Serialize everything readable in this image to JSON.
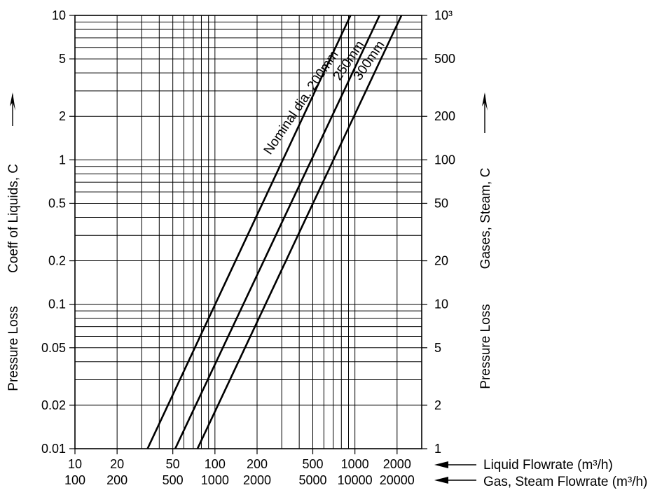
{
  "chart_data": {
    "type": "line",
    "scale": "log-log",
    "x_axis_bottom_1": {
      "ticks": [
        "10",
        "20",
        "50",
        "100",
        "200",
        "500",
        "1000",
        "2000"
      ],
      "values": [
        10,
        20,
        50,
        100,
        200,
        500,
        1000,
        2000
      ],
      "range": [
        10,
        3000
      ],
      "label": "Liquid Flowrate",
      "unit": "(m³/h)"
    },
    "x_axis_bottom_2": {
      "ticks": [
        "100",
        "200",
        "500",
        "1000",
        "2000",
        "5000",
        "10000",
        "20000"
      ],
      "label": "Gas, Steam Flowrate",
      "unit": "(m³/h)"
    },
    "y_axis_left": {
      "ticks": [
        "10",
        "5",
        "2",
        "1",
        "0.5",
        "0.2",
        "0.1",
        "0.05",
        "0.02",
        "0.01"
      ],
      "values": [
        10,
        5,
        2,
        1,
        0.5,
        0.2,
        0.1,
        0.05,
        0.02,
        0.01
      ],
      "range": [
        0.01,
        10
      ],
      "label_part1": "Pressure Loss",
      "label_part2": "Coeff of Liquids, C"
    },
    "y_axis_right": {
      "ticks": [
        "10³",
        "500",
        "200",
        "100",
        "50",
        "20",
        "10",
        "5",
        "2",
        "1"
      ],
      "label_part1": "Pressure Loss",
      "label_part2": "Gases, Steam, C"
    },
    "grid": true,
    "series": [
      {
        "name": "Nominal dia. 200mm",
        "points": [
          [
            33,
            0.01
          ],
          [
            930,
            10
          ]
        ]
      },
      {
        "name": "250mm",
        "points": [
          [
            52,
            0.01
          ],
          [
            1500,
            10
          ]
        ]
      },
      {
        "name": "300mm",
        "points": [
          [
            75,
            0.01
          ],
          [
            2150,
            10
          ]
        ]
      }
    ]
  },
  "icons": {
    "left_axis_arrow": "arrow-up-icon",
    "right_axis_arrow": "arrow-up-icon",
    "liquid_arrow": "arrow-left-icon",
    "gas_arrow": "arrow-left-icon"
  }
}
